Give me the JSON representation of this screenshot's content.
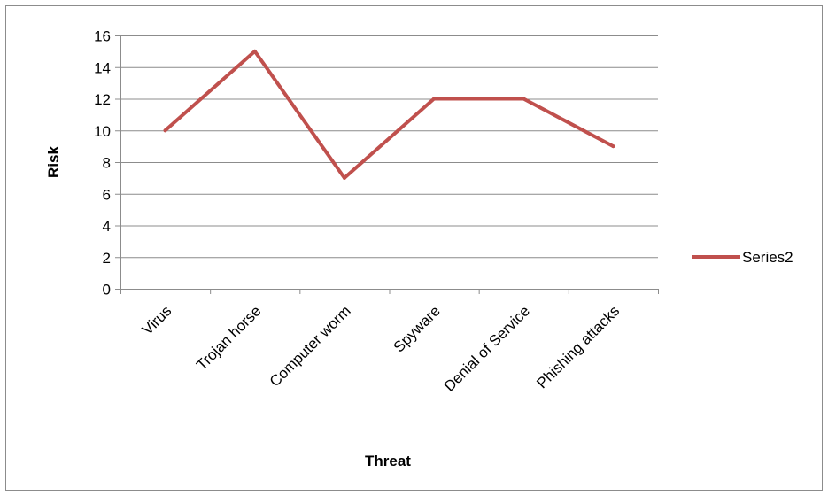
{
  "chart_data": {
    "type": "line",
    "categories": [
      "Virus",
      "Trojan horse",
      "Computer worm",
      "Spyware",
      "Denial of Service",
      "Phishing attacks"
    ],
    "series": [
      {
        "name": "Series2",
        "values": [
          10,
          15,
          7,
          12,
          12,
          9
        ],
        "color": "#C0504D"
      }
    ],
    "xlabel": "Threat",
    "ylabel": "Risk",
    "ylim": [
      0,
      16
    ],
    "yticks": [
      "0",
      "2",
      "4",
      "6",
      "8",
      "10",
      "12",
      "14",
      "16"
    ],
    "grid": "horizontal",
    "legend_position": "right"
  }
}
